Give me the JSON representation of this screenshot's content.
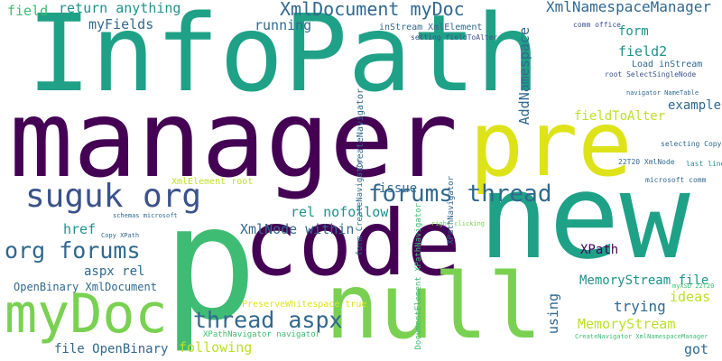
{
  "palette": {
    "dark_purple": "#440154",
    "indigo": "#3b528b",
    "blue_grey": "#31688e",
    "teal": "#21918c",
    "green_teal": "#1fa187",
    "green": "#3fbc73",
    "light_green": "#7ad151",
    "yellow_green": "#bddf26",
    "yellow": "#dde318"
  },
  "words": [
    "InfoPath",
    "manager",
    "pre",
    "new",
    "p",
    "code",
    "null",
    "myDoc",
    "suguk org",
    "forums thread",
    "org forums",
    "thread aspx",
    "XmlDocument myDoc",
    "XmlNamespaceManager",
    "return anything",
    "field",
    "myFields",
    "running",
    "inStream XmlElement",
    "setting fieldToAlter",
    "comm office",
    "form",
    "field2",
    "Load inStream",
    "root SelectSingleNode",
    "AddNamespace",
    "fieldToAlter",
    "example",
    "navigator NameTable",
    "selecting Copy",
    "CreateNavigator",
    "form CreateNavigator",
    "22T20 XmlNode",
    "last line",
    "microsoft comm",
    "XmlElement root",
    "issue",
    "rel nofollow",
    "href",
    "schemas microsoft",
    "Copy XPath",
    "XmlNode within",
    "right clicking",
    "XPathNavigator",
    "XPath",
    "MemoryStream file",
    "myXSD 22T20",
    "aspx rel",
    "OpenBinary XmlDocument",
    "trying",
    "ideas",
    "MemoryStream",
    "using",
    "PreserveWhitespace true",
    "DocumentElement XPathNavigator",
    "XPathNavigator navigator",
    "CreateNavigator XmlNamespaceManager",
    "following",
    "file OpenBinary",
    "got"
  ]
}
